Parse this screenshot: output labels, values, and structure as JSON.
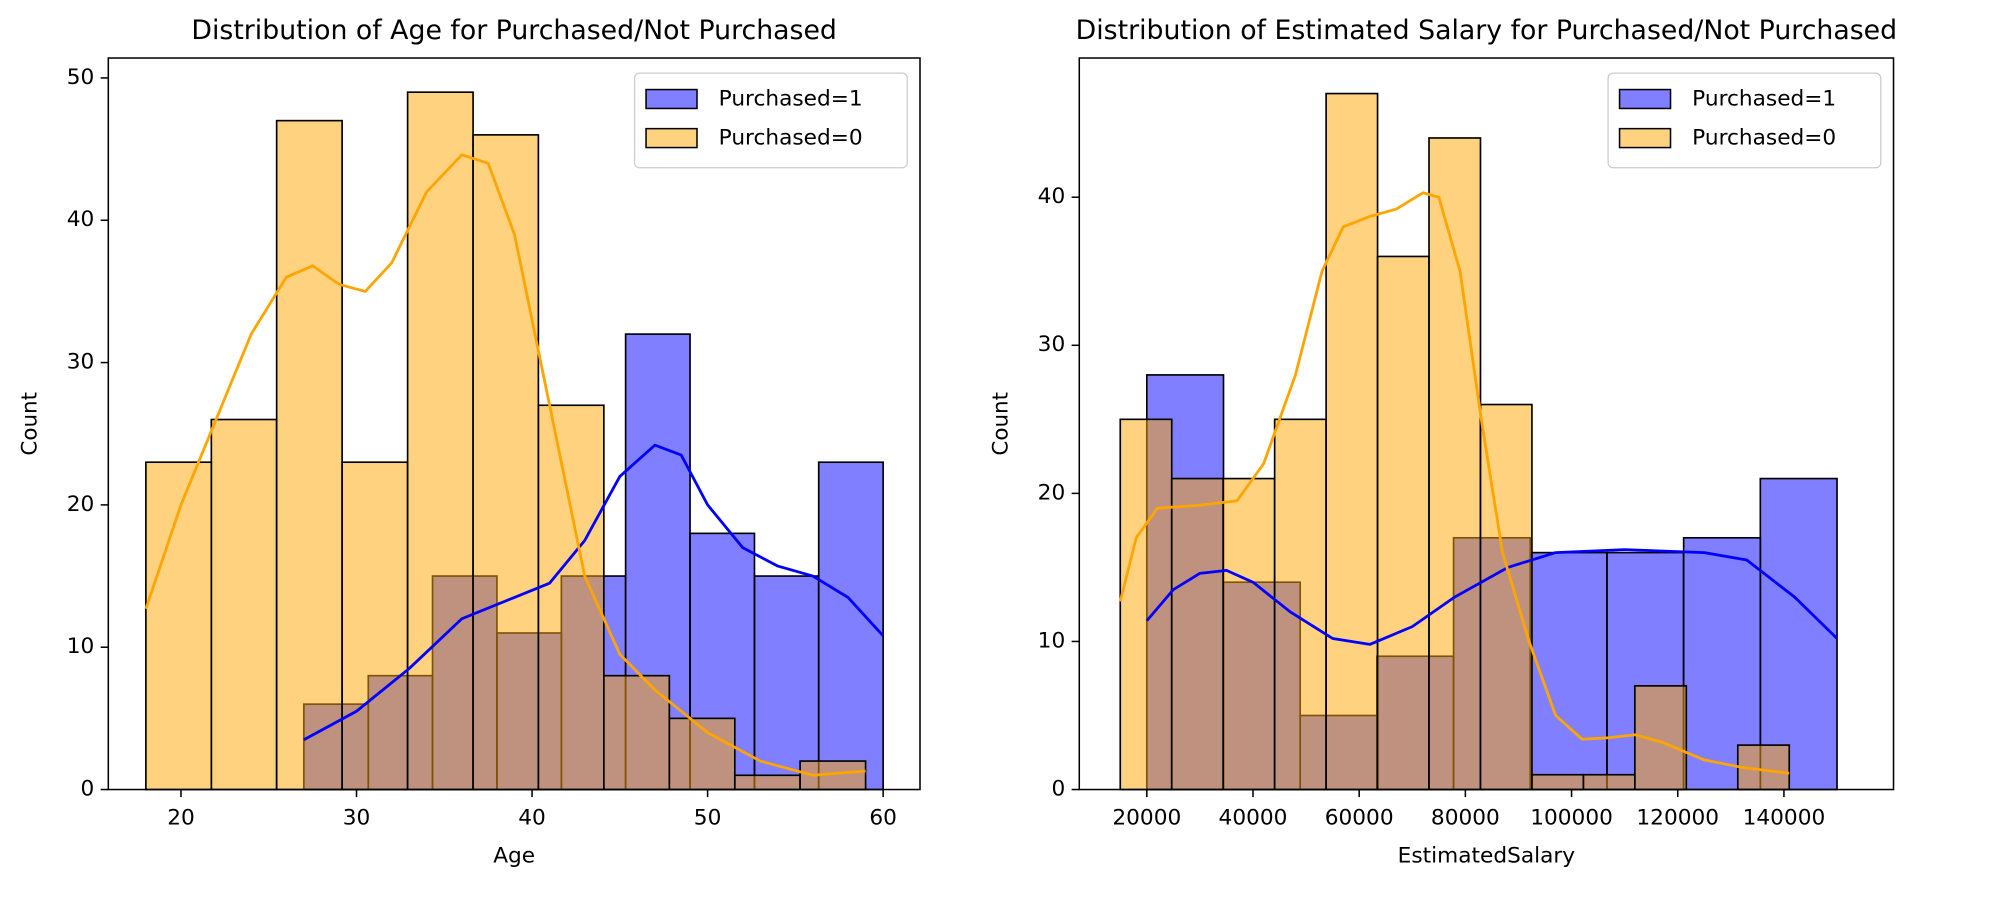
{
  "chart_data": [
    {
      "type": "histogram",
      "title": "Distribution of Age for Purchased/Not Purchased",
      "x_label": "Age",
      "y_label": "Count",
      "xlim": [
        15.86,
        62.1
      ],
      "ylim": [
        0,
        51.4
      ],
      "xticks": [
        20,
        30,
        40,
        50,
        60
      ],
      "yticks": [
        0,
        10,
        20,
        30,
        40,
        50
      ],
      "legend": "upper right",
      "series": [
        {
          "name": "Purchased=1",
          "color": "#0000ff",
          "bins": [
            27,
            30.67,
            34.33,
            38,
            41.67,
            45.33,
            49,
            52.67,
            56.33,
            60
          ],
          "values": [
            6,
            8,
            15,
            11,
            15,
            32,
            18,
            15,
            23
          ],
          "kde": {
            "x": [
              27,
              30,
              33,
              36,
              39,
              41,
              43,
              45,
              47,
              48.5,
              50,
              52,
              54,
              56,
              58,
              60
            ],
            "y": [
              3.5,
              5.5,
              8.5,
              12,
              13.5,
              14.5,
              17.5,
              22,
              24.2,
              23.5,
              20,
              17,
              15.7,
              15,
              13.5,
              10.8
            ]
          }
        },
        {
          "name": "Purchased=0",
          "color": "#ffa500",
          "bins": [
            18,
            21.73,
            25.45,
            29.18,
            32.91,
            36.64,
            40.36,
            44.09,
            47.82,
            51.55,
            55.27,
            59
          ],
          "values": [
            23,
            26,
            47,
            23,
            49,
            46,
            27,
            8,
            5,
            1,
            2
          ],
          "kde": {
            "x": [
              18,
              20,
              22,
              24,
              26,
              27.5,
              29,
              30.5,
              32,
              34,
              36,
              37.5,
              39,
              41,
              43,
              45,
              47,
              50,
              53,
              56,
              59
            ],
            "y": [
              12.7,
              20,
              26,
              32,
              36,
              36.8,
              35.5,
              35,
              37,
              42,
              44.6,
              44,
              39,
              27,
              15,
              9.5,
              7,
              4,
              2,
              1,
              1.3
            ]
          }
        }
      ]
    },
    {
      "type": "histogram",
      "title": "Distribution of Estimated Salary for Purchased/Not Purchased",
      "x_label": "EstimatedSalary",
      "y_label": "Count",
      "xlim": [
        7280,
        160640
      ],
      "ylim": [
        0,
        49.4
      ],
      "xticks": [
        20000,
        40000,
        60000,
        80000,
        100000,
        120000,
        140000
      ],
      "yticks": [
        0,
        10,
        20,
        30,
        40
      ],
      "legend": "upper right",
      "series": [
        {
          "name": "Purchased=1",
          "color": "#0000ff",
          "bins": [
            20000,
            34444,
            48889,
            63333,
            77778,
            92222,
            106667,
            121111,
            135556,
            150000
          ],
          "values": [
            28,
            14,
            5,
            9,
            17,
            16,
            16,
            17,
            21
          ],
          "kde": {
            "x": [
              20000,
              25000,
              30000,
              35000,
              40000,
              47000,
              55000,
              62000,
              70000,
              78000,
              88000,
              97000,
              110000,
              125000,
              133000,
              142000,
              150000
            ],
            "y": [
              11.4,
              13.5,
              14.6,
              14.8,
              14,
              12,
              10.2,
              9.8,
              11,
              13,
              15,
              16,
              16.2,
              16,
              15.5,
              13,
              10.2
            ]
          }
        },
        {
          "name": "Purchased=0",
          "color": "#ffa500",
          "bins": [
            15000,
            24692,
            34385,
            44077,
            53769,
            63462,
            73154,
            82846,
            92538,
            102231,
            111923,
            121615,
            131308,
            141000
          ],
          "values": [
            25,
            21,
            21,
            25,
            47,
            36,
            44,
            26,
            1,
            1,
            7,
            0,
            3
          ],
          "kde": {
            "x": [
              15000,
              18000,
              22000,
              30000,
              37000,
              42000,
              48000,
              53000,
              57000,
              62000,
              67000,
              72000,
              75000,
              79000,
              83000,
              87000,
              92000,
              97000,
              102000,
              107000,
              112000,
              117000,
              125000,
              132000,
              141000
            ],
            "y": [
              12.7,
              17,
              19,
              19.2,
              19.5,
              22,
              28,
              35,
              38,
              38.7,
              39.2,
              40.3,
              40,
              35,
              25,
              16,
              10,
              5,
              3.4,
              3.5,
              3.7,
              3.2,
              2,
              1.5,
              1.1
            ]
          }
        }
      ]
    }
  ]
}
